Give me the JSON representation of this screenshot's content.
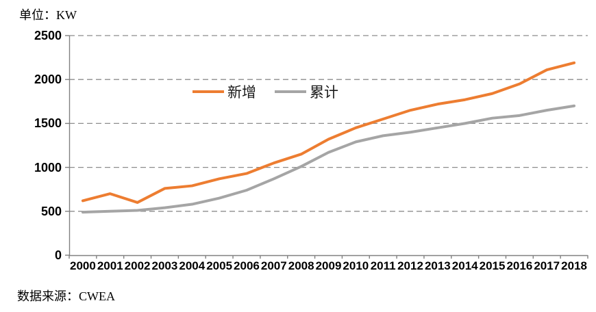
{
  "unit_label": "单位：KW",
  "source_label": "数据来源：CWEA",
  "colors": {
    "series_new": "#ED7D31",
    "series_cumulative": "#A5A5A5",
    "gridline": "#8C8C8C",
    "axis": "#808080",
    "text": "#000000"
  },
  "chart_data": {
    "type": "line",
    "title": "",
    "unit": "KW",
    "xlabel": "",
    "ylabel": "单位：KW",
    "categories": [
      "2000",
      "2001",
      "2002",
      "2003",
      "2004",
      "2005",
      "2006",
      "2007",
      "2008",
      "2009",
      "2010",
      "2011",
      "2012",
      "2013",
      "2014",
      "2015",
      "2016",
      "2017",
      "2018"
    ],
    "series": [
      {
        "name": "新增",
        "color": "#ED7D31",
        "values": [
          620,
          700,
          600,
          760,
          790,
          870,
          930,
          1050,
          1150,
          1320,
          1450,
          1550,
          1650,
          1720,
          1770,
          1840,
          1950,
          2110,
          2190
        ]
      },
      {
        "name": "累计",
        "color": "#A5A5A5",
        "values": [
          490,
          500,
          510,
          540,
          580,
          650,
          740,
          870,
          1010,
          1170,
          1290,
          1360,
          1400,
          1450,
          1500,
          1560,
          1590,
          1650,
          1700
        ]
      }
    ],
    "ylim": [
      0,
      2500
    ],
    "yticks": [
      0,
      500,
      1000,
      1500,
      2000,
      2500
    ],
    "grid": "horizontal-dashed",
    "legend_position": "top-center-inside",
    "source": "CWEA"
  }
}
